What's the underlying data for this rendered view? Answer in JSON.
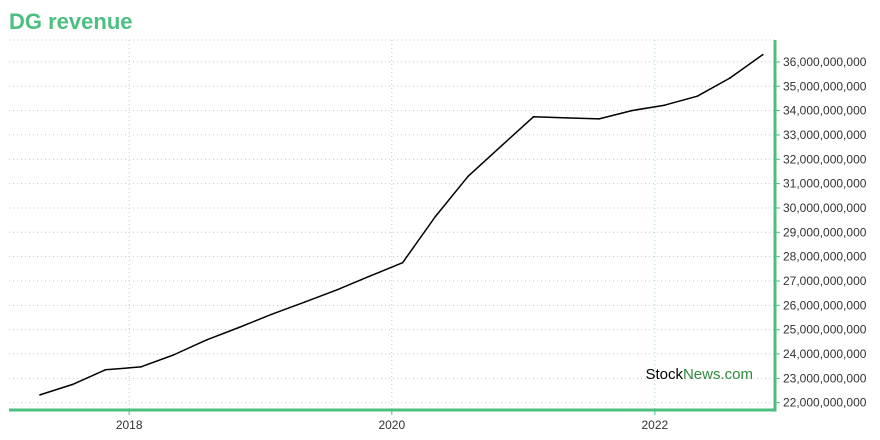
{
  "chart_data": {
    "type": "line",
    "title": "DG revenue",
    "xlabel": "",
    "ylabel": "",
    "x_ticks": [
      "2018",
      "2020",
      "2022"
    ],
    "y_ticks": [
      "22,000,000,000",
      "23,000,000,000",
      "24,000,000,000",
      "25,000,000,000",
      "26,000,000,000",
      "27,000,000,000",
      "28,000,000,000",
      "29,000,000,000",
      "30,000,000,000",
      "31,000,000,000",
      "32,000,000,000",
      "33,000,000,000",
      "34,000,000,000",
      "35,000,000,000",
      "36,000,000,000"
    ],
    "ylim": [
      21700000000,
      36900000000
    ],
    "xlim": [
      "2017-02-01",
      "2022-12-01"
    ],
    "grid": true,
    "y_axis_side": "right",
    "series": [
      {
        "color": "#000000",
        "points": [
          {
            "x": "2017-04-28",
            "y": 22320000000
          },
          {
            "x": "2017-07-28",
            "y": 22750000000
          },
          {
            "x": "2017-10-27",
            "y": 23350000000
          },
          {
            "x": "2018-02-02",
            "y": 23470000000
          },
          {
            "x": "2018-05-04",
            "y": 23960000000
          },
          {
            "x": "2018-08-03",
            "y": 24570000000
          },
          {
            "x": "2018-11-02",
            "y": 25090000000
          },
          {
            "x": "2019-02-01",
            "y": 25630000000
          },
          {
            "x": "2019-05-03",
            "y": 26130000000
          },
          {
            "x": "2019-08-02",
            "y": 26640000000
          },
          {
            "x": "2019-11-01",
            "y": 27200000000
          },
          {
            "x": "2020-01-31",
            "y": 27750000000
          },
          {
            "x": "2020-05-01",
            "y": 29650000000
          },
          {
            "x": "2020-07-31",
            "y": 31300000000
          },
          {
            "x": "2020-10-30",
            "y": 32530000000
          },
          {
            "x": "2021-01-29",
            "y": 33750000000
          },
          {
            "x": "2021-04-30",
            "y": 33700000000
          },
          {
            "x": "2021-07-30",
            "y": 33660000000
          },
          {
            "x": "2021-10-29",
            "y": 34000000000
          },
          {
            "x": "2022-01-28",
            "y": 34220000000
          },
          {
            "x": "2022-04-29",
            "y": 34590000000
          },
          {
            "x": "2022-07-29",
            "y": 35340000000
          },
          {
            "x": "2022-10-28",
            "y": 36300000000
          }
        ]
      }
    ],
    "colors": {
      "title": "#4cbf80",
      "axis": "#4cbf80",
      "grid": "#a8d8c8",
      "tick_text": "#333333"
    }
  },
  "watermark": {
    "part1": "Stock",
    "part2": "News",
    "part3": ".com",
    "color1": "#000000",
    "color2": "#2e8b3e"
  }
}
